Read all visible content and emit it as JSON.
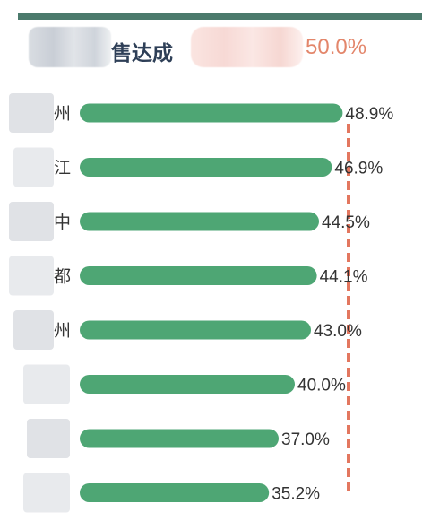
{
  "header": {
    "title": "售达成",
    "target_value": "50.0%"
  },
  "colors": {
    "bar": "#4ea674",
    "target_line": "#e3775f",
    "top_bar": "#4b7a6c",
    "title": "#2e3f57",
    "target_text": "#e3866b",
    "label_text": "#333333"
  },
  "chart_data": {
    "type": "bar",
    "orientation": "horizontal",
    "categories": [
      "州",
      "江",
      "中",
      "都",
      "州",
      "",
      "",
      ""
    ],
    "values": [
      48.9,
      46.9,
      44.5,
      44.1,
      43.0,
      40.0,
      37.0,
      35.2
    ],
    "value_labels": [
      "48.9%",
      "46.9%",
      "44.5%",
      "44.1%",
      "43.0%",
      "40.0%",
      "37.0%",
      "35.2%"
    ],
    "target": 50.0,
    "xlim": [
      0,
      50
    ],
    "title": "",
    "xlabel": "",
    "ylabel": "",
    "grid": false,
    "legend": "none"
  }
}
